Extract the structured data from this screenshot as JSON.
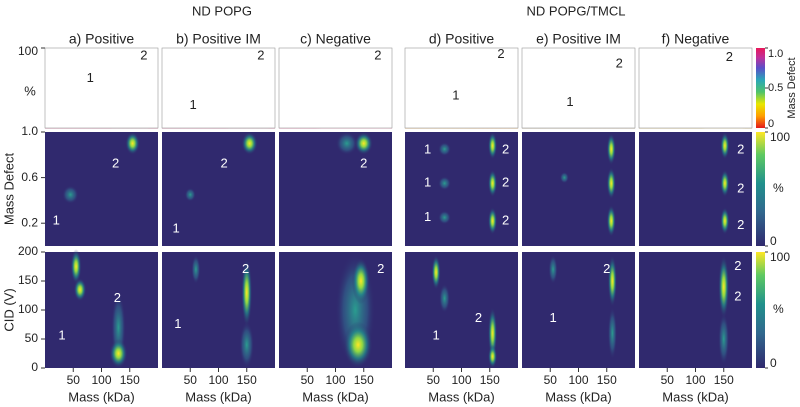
{
  "groups": [
    {
      "title": "ND POPG"
    },
    {
      "title": "ND POPG/TMCL"
    }
  ],
  "panels": [
    {
      "title": "a) Positive",
      "hist_peaks": [
        "1",
        "2"
      ],
      "md_peaks": [
        "1",
        "2"
      ],
      "cid_peaks": [
        "1",
        "2"
      ]
    },
    {
      "title": "b) Positive IM",
      "hist_peaks": [
        "1",
        "2"
      ],
      "md_peaks": [
        "1",
        "2"
      ],
      "cid_peaks": [
        "1",
        "2"
      ]
    },
    {
      "title": "c) Negative",
      "hist_peaks": [
        "2"
      ],
      "md_peaks": [
        "2"
      ],
      "cid_peaks": [
        "2"
      ]
    },
    {
      "title": "d) Positive",
      "hist_peaks": [
        "1",
        "2"
      ],
      "md_peaks": [
        "1",
        "1",
        "1",
        "2",
        "2",
        "2"
      ],
      "cid_peaks": [
        "1",
        "2"
      ]
    },
    {
      "title": "e) Positive IM",
      "hist_peaks": [
        "1",
        "2"
      ],
      "md_peaks": [],
      "cid_peaks": [
        "1",
        "2"
      ]
    },
    {
      "title": "f) Negative",
      "hist_peaks": [
        "2"
      ],
      "md_peaks": [
        "2",
        "2",
        "2"
      ],
      "cid_peaks": [
        "2",
        "2"
      ]
    }
  ],
  "hist_axis": {
    "label": "%",
    "ylim": [
      0,
      100
    ],
    "yticks": [
      100
    ]
  },
  "md_axis": {
    "label": "Mass Defect",
    "ylim": [
      0,
      1.0
    ],
    "yticks": [
      {
        "value": 1.0,
        "label": "1.0"
      },
      0.6,
      0.2
    ]
  },
  "cid_axis": {
    "label": "CID (V)",
    "ylim": [
      0,
      200
    ],
    "yticks": [
      0,
      50,
      100,
      150,
      200
    ]
  },
  "mass_axis": {
    "label": "Mass (kDa)",
    "xlim": [
      0,
      200
    ],
    "xticks": [
      50,
      100,
      150
    ]
  },
  "md_colorbar": {
    "label": "Mass Defect",
    "ticks": [
      {
        "value": 1.0,
        "label": "1.0"
      },
      0.5,
      0
    ]
  },
  "intensity_colorbar": {
    "label": "%",
    "ticks": [
      100,
      0
    ]
  }
}
